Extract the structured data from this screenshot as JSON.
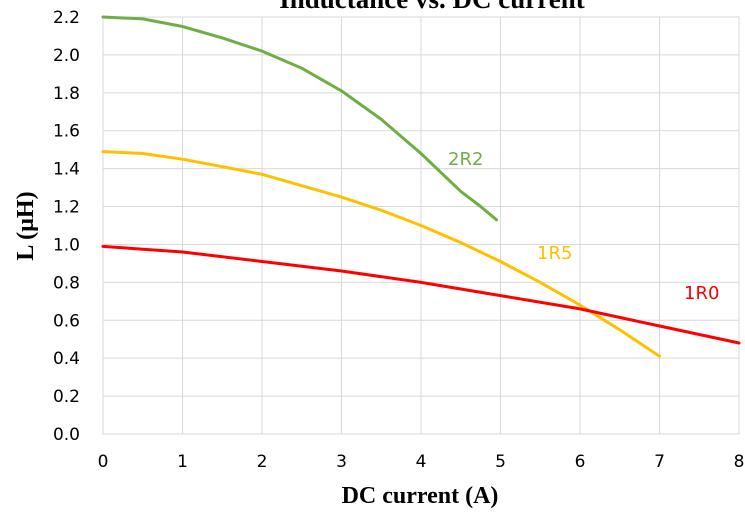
{
  "chart_data": {
    "type": "line",
    "title": "Inductance vs. DC current",
    "xlabel": "DC current (A)",
    "ylabel": "L (µH)",
    "xlim": [
      0,
      8
    ],
    "ylim": [
      0,
      2.2
    ],
    "grid": true,
    "x_ticks": [
      "0",
      "1",
      "2",
      "3",
      "4",
      "5",
      "6",
      "7",
      "8"
    ],
    "y_ticks": [
      "0.0",
      "0.2",
      "0.4",
      "0.6",
      "0.8",
      "1.0",
      "1.2",
      "1.4",
      "1.6",
      "1.8",
      "2.0",
      "2.2"
    ],
    "series": [
      {
        "name": "2R2",
        "color": "#70ad47",
        "x": [
          0,
          0.5,
          1.0,
          1.5,
          2.0,
          2.5,
          3.0,
          3.5,
          4.0,
          4.5,
          4.75,
          4.95
        ],
        "y": [
          2.2,
          2.19,
          2.15,
          2.09,
          2.02,
          1.93,
          1.81,
          1.66,
          1.48,
          1.28,
          1.2,
          1.13
        ]
      },
      {
        "name": "1R5",
        "color": "#ffc000",
        "x": [
          0,
          0.5,
          1.0,
          1.5,
          2.0,
          2.5,
          3.0,
          3.5,
          4.0,
          4.5,
          5.0,
          5.5,
          6.0,
          6.5,
          7.0
        ],
        "y": [
          1.49,
          1.48,
          1.45,
          1.41,
          1.37,
          1.31,
          1.25,
          1.18,
          1.1,
          1.01,
          0.91,
          0.8,
          0.68,
          0.55,
          0.41
        ]
      },
      {
        "name": "1R0",
        "color": "#ff0000",
        "x": [
          0,
          1,
          2,
          3,
          4,
          5,
          6,
          7,
          8
        ],
        "y": [
          0.99,
          0.96,
          0.91,
          0.86,
          0.8,
          0.73,
          0.66,
          0.57,
          0.48
        ]
      }
    ]
  }
}
